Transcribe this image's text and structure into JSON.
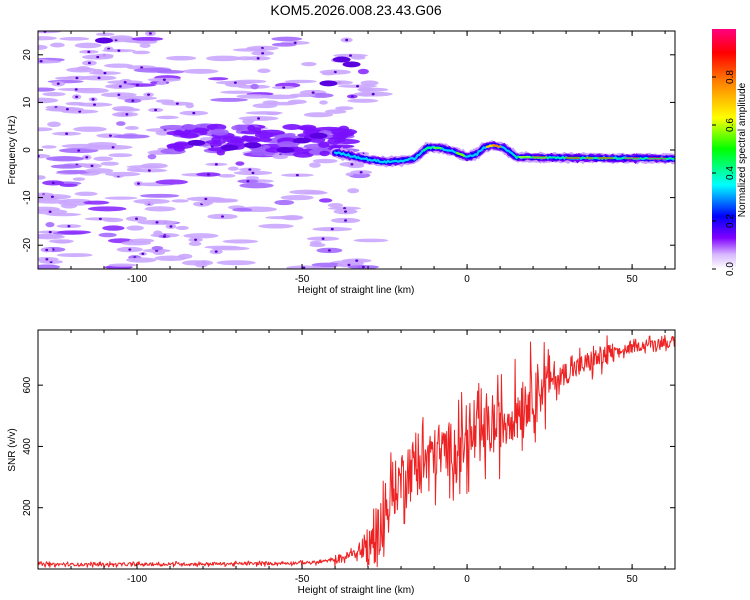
{
  "figure": {
    "title": "KOM5.2026.008.23.43.G06"
  },
  "chart_data": [
    {
      "type": "heatmap",
      "xlabel": "Height of straight line (km)",
      "ylabel": "Frequency (Hz)",
      "xlim": [
        -130,
        63
      ],
      "ylim": [
        -25,
        25
      ],
      "xticks": [
        -100,
        -50,
        0,
        50
      ],
      "yticks": [
        -20,
        -10,
        0,
        10,
        20
      ],
      "colorbar": {
        "label": "Normalized spectral amplitude",
        "range": [
          0,
          1
        ],
        "ticks": [
          "0.0",
          "0.2",
          "0.4",
          "0.6",
          "0.8"
        ],
        "colors": [
          "#ffffff",
          "#c8a0ff",
          "#8000ff",
          "#0000ff",
          "#00ffff",
          "#00ff00",
          "#ffff00",
          "#ff8000",
          "#ff0000",
          "#ff0080"
        ]
      },
      "ridge": {
        "x": [
          -40,
          -30,
          -25,
          -20,
          -16,
          -12,
          -8,
          -4,
          0,
          3,
          5,
          8,
          11,
          15,
          25,
          40,
          63
        ],
        "y": [
          -0.5,
          -2,
          -2.5,
          -2.3,
          -1.8,
          0.5,
          0.4,
          -0.3,
          -1.5,
          -0.8,
          0.5,
          1,
          0.5,
          -1.5,
          -1.6,
          -1.7,
          -1.8
        ]
      },
      "legend": "none"
    },
    {
      "type": "line",
      "xlabel": "Height of straight line (km)",
      "ylabel": "SNR (v/v)",
      "xlim": [
        -130,
        63
      ],
      "ylim": [
        0,
        780
      ],
      "xticks": [
        -100,
        -50,
        0,
        50
      ],
      "yticks": [
        200,
        400,
        600
      ],
      "color": "#ee2222",
      "trend": {
        "x": [
          -130,
          -100,
          -60,
          -45,
          -38,
          -32,
          -28,
          -25,
          -22,
          -18,
          -12,
          -8,
          -4,
          0,
          5,
          10,
          15,
          20,
          25,
          30,
          40,
          50,
          55,
          60,
          63
        ],
        "y": [
          15,
          15,
          18,
          22,
          35,
          60,
          100,
          170,
          260,
          330,
          360,
          380,
          400,
          410,
          440,
          470,
          520,
          580,
          610,
          640,
          690,
          720,
          735,
          740,
          730
        ]
      },
      "legend": "none"
    }
  ]
}
